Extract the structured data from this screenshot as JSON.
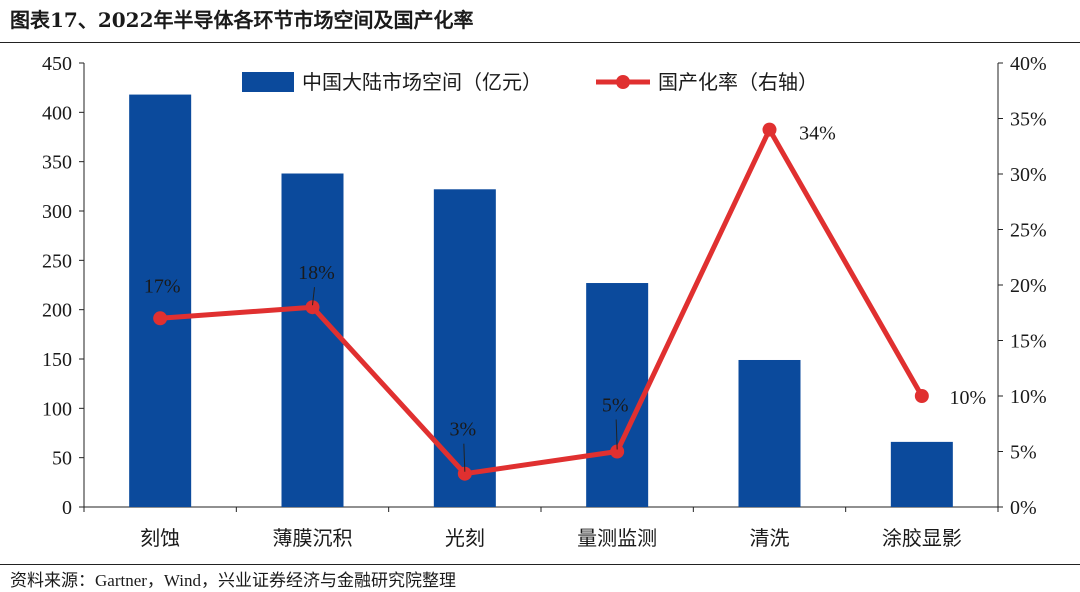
{
  "title": "图表17、2022年半导体各环节市场空间及国产化率",
  "source": "资料来源：Gartner，Wind，兴业证券经济与金融研究院整理",
  "chart_data": {
    "type": "bar",
    "categories": [
      "刻蚀",
      "薄膜沉积",
      "光刻",
      "量测监测",
      "清洗",
      "涂胶显影"
    ],
    "series": [
      {
        "name": "中国大陆市场空间（亿元）",
        "type": "bar",
        "axis": "left",
        "color": "#0b4a9c",
        "values": [
          418,
          338,
          322,
          227,
          149,
          66
        ]
      },
      {
        "name": "国产化率（右轴）",
        "type": "line",
        "axis": "right",
        "color": "#e03030",
        "values": [
          0.17,
          0.18,
          0.03,
          0.05,
          0.34,
          0.1
        ],
        "labels": [
          "17%",
          "18%",
          "3%",
          "5%",
          "34%",
          "10%"
        ]
      }
    ],
    "ylim_left": [
      0,
      450
    ],
    "yticks_left": [
      "0",
      "50",
      "100",
      "150",
      "200",
      "250",
      "300",
      "350",
      "400",
      "450"
    ],
    "ylim_right": [
      0,
      0.4
    ],
    "yticks_right": [
      "0%",
      "5%",
      "10%",
      "15%",
      "20%",
      "25%",
      "30%",
      "35%",
      "40%"
    ],
    "legend_position": "top-center",
    "grid": false
  }
}
